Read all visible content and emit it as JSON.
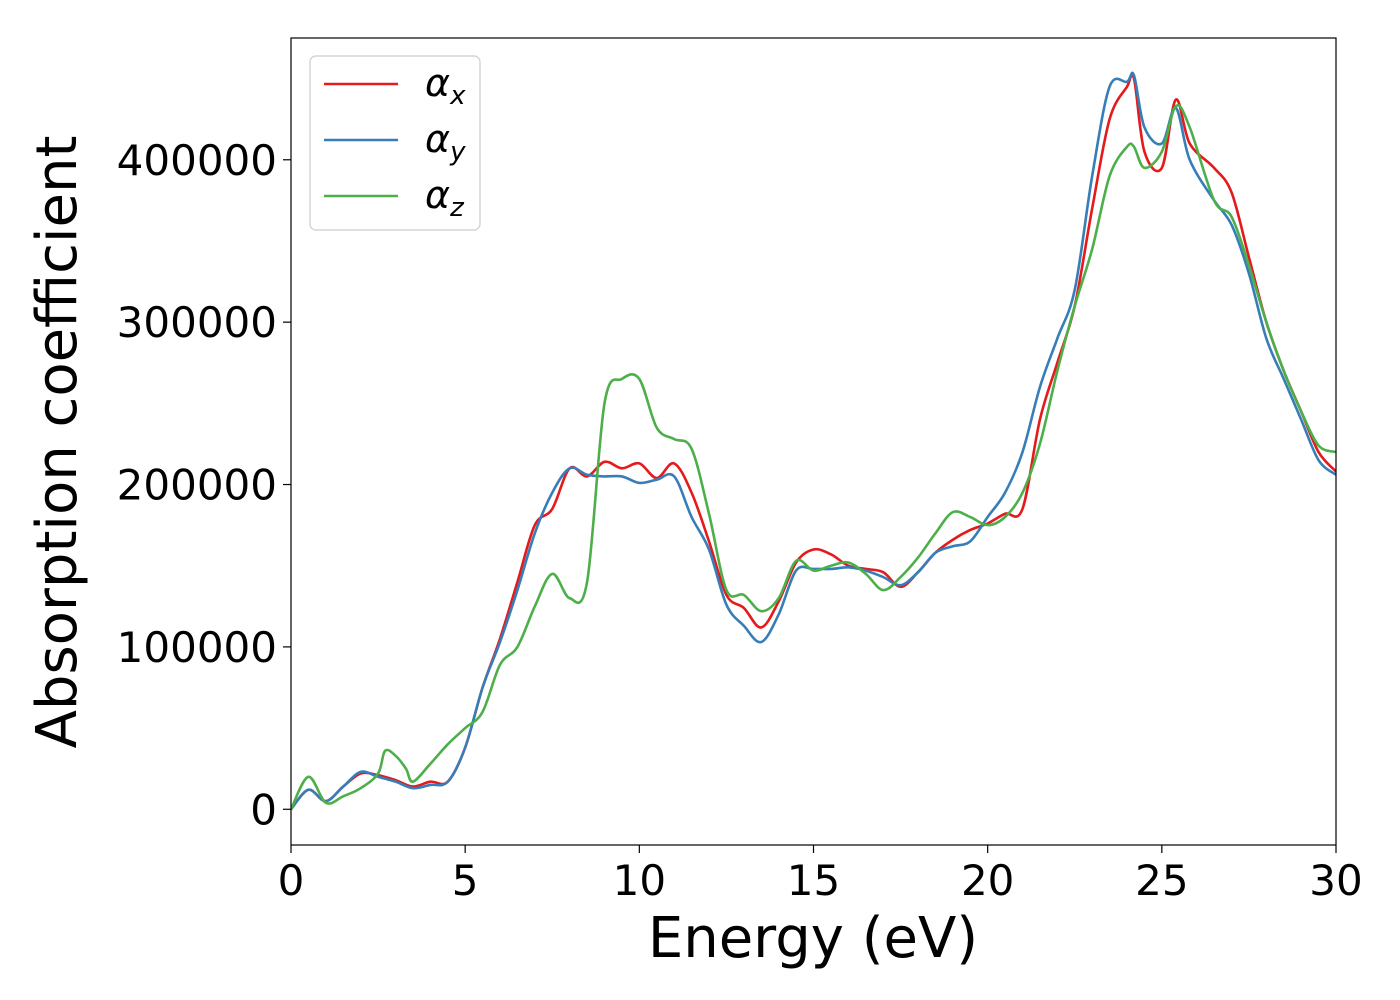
{
  "chart_data": {
    "type": "line",
    "title": "",
    "xlabel": "Energy (eV)",
    "ylabel": "Absorption coefficient",
    "xlim": [
      0,
      30
    ],
    "ylim": [
      -22000,
      475000
    ],
    "xticks": [
      0,
      5,
      10,
      15,
      20,
      25,
      30
    ],
    "yticks": [
      0,
      100000,
      200000,
      300000,
      400000
    ],
    "grid": false,
    "legend_position": "top-left",
    "series": [
      {
        "name": "α",
        "subscript": "x",
        "color": "#e41a1c",
        "x": [
          0,
          0.5,
          1,
          1.5,
          2,
          2.5,
          3,
          3.5,
          4,
          4.5,
          5,
          5.5,
          6,
          6.5,
          7,
          7.5,
          8,
          8.5,
          9,
          9.5,
          10,
          10.5,
          11,
          11.5,
          12,
          12.5,
          13,
          13.5,
          14,
          14.5,
          15,
          15.5,
          16,
          16.5,
          17,
          17.5,
          18,
          18.5,
          19,
          19.5,
          20,
          20.5,
          21,
          21.5,
          22,
          22.5,
          23,
          23.5,
          24,
          24.2,
          24.5,
          25,
          25.4,
          25.8,
          26.5,
          27,
          27.5,
          28,
          28.5,
          29,
          29.5,
          30
        ],
        "y": [
          0,
          12000,
          5000,
          14000,
          22000,
          21000,
          18000,
          14000,
          17000,
          17000,
          38000,
          75000,
          105000,
          140000,
          175000,
          185000,
          210000,
          205000,
          214000,
          210000,
          213000,
          204000,
          213000,
          195000,
          165000,
          132000,
          124000,
          112000,
          128000,
          152000,
          160000,
          157000,
          150000,
          148000,
          146000,
          137000,
          146000,
          158000,
          166000,
          172000,
          176000,
          182000,
          185000,
          240000,
          275000,
          310000,
          370000,
          425000,
          445000,
          450000,
          405000,
          395000,
          437000,
          410000,
          395000,
          380000,
          340000,
          300000,
          270000,
          245000,
          220000,
          208000
        ]
      },
      {
        "name": "α",
        "subscript": "y",
        "color": "#377eb8",
        "x": [
          0,
          0.5,
          1,
          1.5,
          2,
          2.5,
          3,
          3.5,
          4,
          4.5,
          5,
          5.5,
          6,
          6.5,
          7,
          7.5,
          8,
          8.5,
          9,
          9.5,
          10,
          10.5,
          11,
          11.5,
          12,
          12.5,
          13,
          13.5,
          14,
          14.5,
          15,
          15.5,
          16,
          16.5,
          17,
          17.5,
          18,
          18.5,
          19,
          19.5,
          20,
          20.5,
          21,
          21.5,
          22,
          22.5,
          23,
          23.5,
          24,
          24.2,
          24.5,
          25,
          25.4,
          25.8,
          26.5,
          27,
          27.5,
          28,
          28.5,
          29,
          29.5,
          30
        ],
        "y": [
          0,
          12000,
          5000,
          14000,
          23000,
          20000,
          17000,
          13000,
          15000,
          17000,
          38000,
          75000,
          103000,
          135000,
          170000,
          195000,
          210000,
          206000,
          205000,
          205000,
          201000,
          203000,
          205000,
          180000,
          160000,
          126000,
          113000,
          103000,
          120000,
          147000,
          148000,
          148000,
          149000,
          147000,
          143000,
          138000,
          146000,
          158000,
          162000,
          165000,
          180000,
          195000,
          220000,
          260000,
          290000,
          320000,
          390000,
          445000,
          448000,
          452000,
          420000,
          410000,
          432000,
          400000,
          375000,
          360000,
          330000,
          290000,
          265000,
          240000,
          215000,
          206000
        ]
      },
      {
        "name": "α",
        "subscript": "z",
        "color": "#4daf4a",
        "x": [
          0,
          0.5,
          1,
          1.5,
          2,
          2.5,
          2.7,
          3,
          3.3,
          3.5,
          4,
          4.5,
          5,
          5.5,
          6,
          6.5,
          7,
          7.5,
          8,
          8.5,
          9,
          9.5,
          10,
          10.5,
          11,
          11.5,
          12,
          12.5,
          13,
          13.5,
          14,
          14.5,
          15,
          15.5,
          16,
          16.5,
          17,
          17.5,
          18,
          18.5,
          19,
          19.5,
          20,
          20.5,
          21,
          21.5,
          22,
          22.5,
          23,
          23.5,
          24,
          24.2,
          24.5,
          25,
          25.4,
          25.8,
          26.5,
          27,
          27.5,
          28,
          28.5,
          29,
          29.5,
          30
        ],
        "y": [
          0,
          20000,
          4000,
          8000,
          13000,
          22000,
          36000,
          33000,
          25000,
          17000,
          28000,
          40000,
          50000,
          60000,
          89000,
          100000,
          125000,
          145000,
          130000,
          140000,
          250000,
          265000,
          265000,
          235000,
          228000,
          222000,
          182000,
          135000,
          132000,
          122000,
          130000,
          153000,
          147000,
          150000,
          152000,
          145000,
          135000,
          143000,
          155000,
          170000,
          183000,
          180000,
          175000,
          180000,
          195000,
          225000,
          270000,
          310000,
          345000,
          390000,
          408000,
          408000,
          395000,
          405000,
          433000,
          420000,
          375000,
          365000,
          335000,
          300000,
          270000,
          245000,
          224000,
          220000
        ]
      }
    ]
  }
}
